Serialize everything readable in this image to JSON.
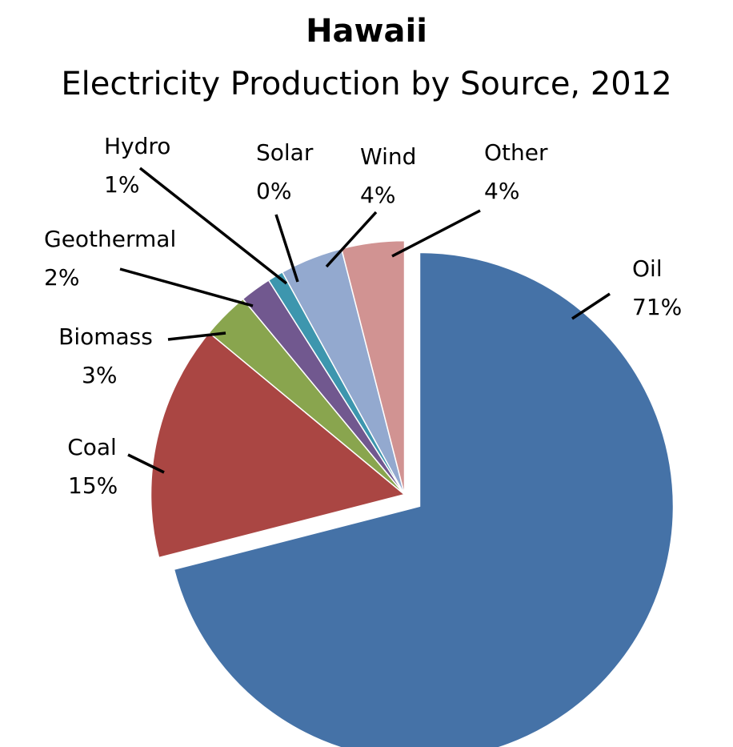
{
  "chart_data": {
    "type": "pie",
    "title": "Hawaii",
    "subtitle": "Electricity Production by Source, 2012",
    "slices": [
      {
        "label": "Oil",
        "value": 71,
        "display": "71%",
        "color": "#4572A7"
      },
      {
        "label": "Coal",
        "value": 15,
        "display": "15%",
        "color": "#AA4643"
      },
      {
        "label": "Biomass",
        "value": 3,
        "display": "3%",
        "color": "#89A54E"
      },
      {
        "label": "Geothermal",
        "value": 2,
        "display": "2%",
        "color": "#71588F"
      },
      {
        "label": "Hydro",
        "value": 1,
        "display": "1%",
        "color": "#3D96AE"
      },
      {
        "label": "Solar",
        "value": 0,
        "display": "0%",
        "color": "#DB843D"
      },
      {
        "label": "Wind",
        "value": 4,
        "display": "4%",
        "color": "#93A9CF"
      },
      {
        "label": "Other",
        "value": 4,
        "display": "4%",
        "color": "#D19392"
      }
    ],
    "legend": "none",
    "exploded_slice": "Oil"
  }
}
